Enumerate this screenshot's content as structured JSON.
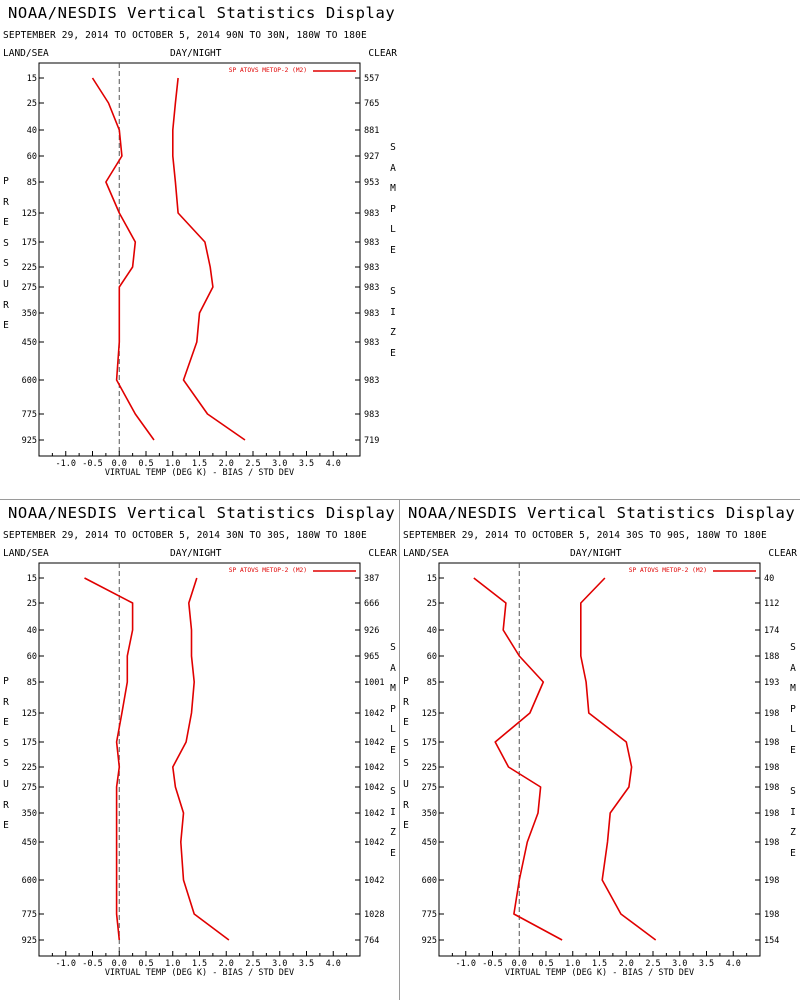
{
  "colors": {
    "line": "#e00000",
    "axis": "#000000",
    "zero_line": "#555555"
  },
  "common": {
    "title": "NOAA/NESDIS Vertical Statistics Display",
    "left_header": "LAND/SEA",
    "center_header": "DAY/NIGHT",
    "right_header": "CLEAR",
    "left_vertical_label": "PRESSURE",
    "right_vertical_label": "SAMPLE SIZE",
    "legend_label": "SP ATOVS METOP-2 (M2)",
    "xlabel": "VIRTUAL TEMP (DEG K) - BIAS / STD DEV"
  },
  "panels": [
    {
      "subtitle": "SEPTEMBER 29, 2014 TO OCTOBER 5, 2014 90N TO 30N, 180W TO 180E"
    },
    {
      "subtitle": "SEPTEMBER 29, 2014 TO OCTOBER 5, 2014 30N TO 30S, 180W TO 180E"
    },
    {
      "subtitle": "SEPTEMBER 29, 2014 TO OCTOBER 5, 2014 30S TO 90S, 180W TO 180E"
    }
  ],
  "chart_data": [
    {
      "type": "line",
      "title": "NOAA/NESDIS Vertical Statistics Display",
      "subtitle": "SEPTEMBER 29, 2014 TO OCTOBER 5, 2014 90N TO 30N, 180W TO 180E",
      "xlabel": "VIRTUAL TEMP (DEG K) - BIAS / STD DEV",
      "ylabel": "PRESSURE",
      "y2label": "SAMPLE SIZE",
      "xlim": [
        -1.5,
        4.5
      ],
      "x_ticks": [
        "-1.0",
        "-0.5",
        "0.0",
        "0.5",
        "1.0",
        "1.5",
        "2.0",
        "2.5",
        "3.0",
        "3.5",
        "4.0"
      ],
      "pressure_levels": [
        "15",
        "25",
        "40",
        "60",
        "85",
        "125",
        "175",
        "225",
        "275",
        "350",
        "450",
        "600",
        "775",
        "925"
      ],
      "sample_size": [
        "557",
        "765",
        "881",
        "927",
        "953",
        "983",
        "983",
        "983",
        "983",
        "983",
        "983",
        "983",
        "983",
        "719"
      ],
      "legend": "SP ATOVS METOP-2 (M2)",
      "series": [
        {
          "values": [
            -0.5,
            -0.2,
            0.0,
            0.05,
            -0.25,
            0.0,
            0.3,
            0.25,
            0.0,
            0.0,
            0.0,
            -0.05,
            0.3,
            0.65
          ]
        },
        {
          "values": [
            1.1,
            1.05,
            1.0,
            1.0,
            1.05,
            1.1,
            1.6,
            1.7,
            1.75,
            1.5,
            1.45,
            1.2,
            1.65,
            2.35
          ]
        }
      ]
    },
    {
      "type": "line",
      "title": "NOAA/NESDIS Vertical Statistics Display",
      "subtitle": "SEPTEMBER 29, 2014 TO OCTOBER 5, 2014 30N TO 30S, 180W TO 180E",
      "xlabel": "VIRTUAL TEMP (DEG K) - BIAS / STD DEV",
      "ylabel": "PRESSURE",
      "y2label": "SAMPLE SIZE",
      "xlim": [
        -1.5,
        4.5
      ],
      "x_ticks": [
        "-1.0",
        "-0.5",
        "0.0",
        "0.5",
        "1.0",
        "1.5",
        "2.0",
        "2.5",
        "3.0",
        "3.5",
        "4.0"
      ],
      "pressure_levels": [
        "15",
        "25",
        "40",
        "60",
        "85",
        "125",
        "175",
        "225",
        "275",
        "350",
        "450",
        "600",
        "775",
        "925"
      ],
      "sample_size": [
        "387",
        "666",
        "926",
        "965",
        "1001",
        "1042",
        "1042",
        "1042",
        "1042",
        "1042",
        "1042",
        "1042",
        "1028",
        "764"
      ],
      "legend": "SP ATOVS METOP-2 (M2)",
      "series": [
        {
          "values": [
            -0.65,
            0.25,
            0.25,
            0.15,
            0.15,
            0.05,
            -0.05,
            0.0,
            -0.05,
            -0.05,
            -0.05,
            -0.05,
            -0.05,
            0.0
          ]
        },
        {
          "values": [
            1.45,
            1.3,
            1.35,
            1.35,
            1.4,
            1.35,
            1.25,
            1.0,
            1.05,
            1.2,
            1.15,
            1.2,
            1.4,
            2.05
          ]
        }
      ]
    },
    {
      "type": "line",
      "title": "NOAA/NESDIS Vertical Statistics Display",
      "subtitle": "SEPTEMBER 29, 2014 TO OCTOBER 5, 2014 30S TO 90S, 180W TO 180E",
      "xlabel": "VIRTUAL TEMP (DEG K) - BIAS / STD DEV",
      "ylabel": "PRESSURE",
      "y2label": "SAMPLE SIZE",
      "xlim": [
        -1.5,
        4.5
      ],
      "x_ticks": [
        "-1.0",
        "-0.5",
        "0.0",
        "0.5",
        "1.0",
        "1.5",
        "2.0",
        "2.5",
        "3.0",
        "3.5",
        "4.0"
      ],
      "pressure_levels": [
        "15",
        "25",
        "40",
        "60",
        "85",
        "125",
        "175",
        "225",
        "275",
        "350",
        "450",
        "600",
        "775",
        "925"
      ],
      "sample_size": [
        "40",
        "112",
        "174",
        "188",
        "193",
        "198",
        "198",
        "198",
        "198",
        "198",
        "198",
        "198",
        "198",
        "154"
      ],
      "legend": "SP ATOVS METOP-2 (M2)",
      "series": [
        {
          "values": [
            -0.85,
            -0.25,
            -0.3,
            0.0,
            0.45,
            0.2,
            -0.45,
            -0.2,
            0.4,
            0.35,
            0.15,
            0.0,
            -0.1,
            0.8
          ]
        },
        {
          "values": [
            1.6,
            1.15,
            1.15,
            1.15,
            1.25,
            1.3,
            2.0,
            2.1,
            2.05,
            1.7,
            1.65,
            1.55,
            1.9,
            2.55
          ]
        }
      ]
    }
  ]
}
